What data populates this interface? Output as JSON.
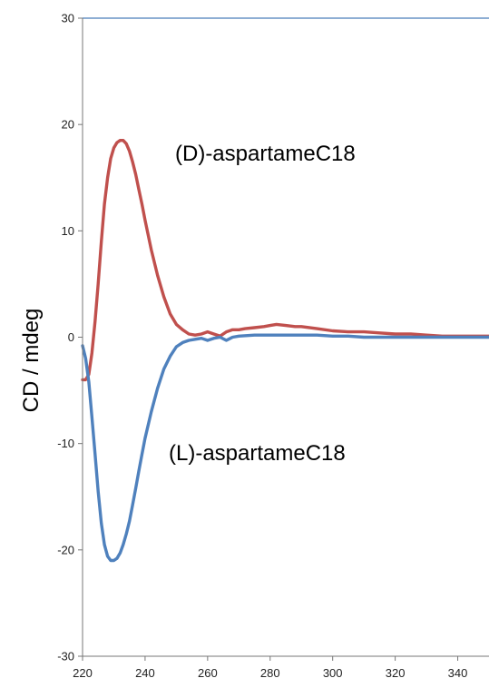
{
  "chart_data": {
    "type": "line",
    "title": "",
    "xlabel": "",
    "ylabel": "CD / mdeg",
    "xlim": [
      220,
      350
    ],
    "ylim": [
      -30,
      30
    ],
    "x_ticks": [
      220,
      240,
      260,
      280,
      300,
      320,
      340
    ],
    "y_ticks": [
      -30,
      -20,
      -10,
      0,
      10,
      20,
      30
    ],
    "grid": false,
    "legend": "none",
    "axis_color": "#4a7ebb",
    "annotations": [
      {
        "text": "(D)-aspartameC18",
        "x": 263,
        "y": 17.5
      },
      {
        "text": "(L)-aspartameC18",
        "x": 261,
        "y": -10.7
      }
    ],
    "series": [
      {
        "color": "#c0504d",
        "x": [
          220,
          221,
          222,
          223,
          224,
          225,
          226,
          227,
          228,
          229,
          230,
          231,
          232,
          233,
          234,
          235,
          236,
          237,
          238,
          239,
          240,
          242,
          244,
          246,
          248,
          250,
          252,
          254,
          256,
          258,
          260,
          262,
          264,
          266,
          268,
          270,
          272,
          275,
          278,
          280,
          282,
          285,
          288,
          290,
          295,
          300,
          305,
          310,
          315,
          320,
          325,
          330,
          335,
          340,
          345,
          350
        ],
        "values": [
          -4.0,
          -4.0,
          -3.5,
          -1.5,
          1.5,
          5.0,
          9.0,
          12.5,
          15.0,
          16.8,
          17.8,
          18.3,
          18.5,
          18.5,
          18.2,
          17.5,
          16.5,
          15.3,
          13.9,
          12.5,
          11.0,
          8.2,
          5.8,
          3.8,
          2.2,
          1.2,
          0.7,
          0.3,
          0.2,
          0.3,
          0.5,
          0.3,
          0.1,
          0.5,
          0.7,
          0.7,
          0.8,
          0.9,
          1.0,
          1.1,
          1.2,
          1.1,
          1.0,
          1.0,
          0.8,
          0.6,
          0.5,
          0.5,
          0.4,
          0.3,
          0.3,
          0.2,
          0.1,
          0.1,
          0.1,
          0.1
        ]
      },
      {
        "color": "#4f81bd",
        "x": [
          220,
          221,
          222,
          223,
          224,
          225,
          226,
          227,
          228,
          229,
          230,
          231,
          232,
          233,
          234,
          235,
          236,
          237,
          238,
          239,
          240,
          242,
          244,
          246,
          248,
          250,
          252,
          254,
          256,
          258,
          260,
          262,
          264,
          266,
          268,
          270,
          275,
          280,
          285,
          290,
          295,
          300,
          305,
          310,
          320,
          330,
          340,
          350
        ],
        "values": [
          -0.8,
          -2.0,
          -4.2,
          -7.5,
          -11.0,
          -14.5,
          -17.5,
          -19.5,
          -20.6,
          -21.0,
          -21.0,
          -20.8,
          -20.3,
          -19.5,
          -18.5,
          -17.3,
          -15.8,
          -14.2,
          -12.6,
          -11.0,
          -9.5,
          -7.0,
          -4.8,
          -3.0,
          -1.8,
          -0.9,
          -0.5,
          -0.3,
          -0.2,
          -0.1,
          -0.3,
          -0.1,
          0.0,
          -0.3,
          0.0,
          0.1,
          0.2,
          0.2,
          0.2,
          0.2,
          0.2,
          0.1,
          0.1,
          0.0,
          0.0,
          0.0,
          0.0,
          0.0
        ]
      }
    ]
  }
}
